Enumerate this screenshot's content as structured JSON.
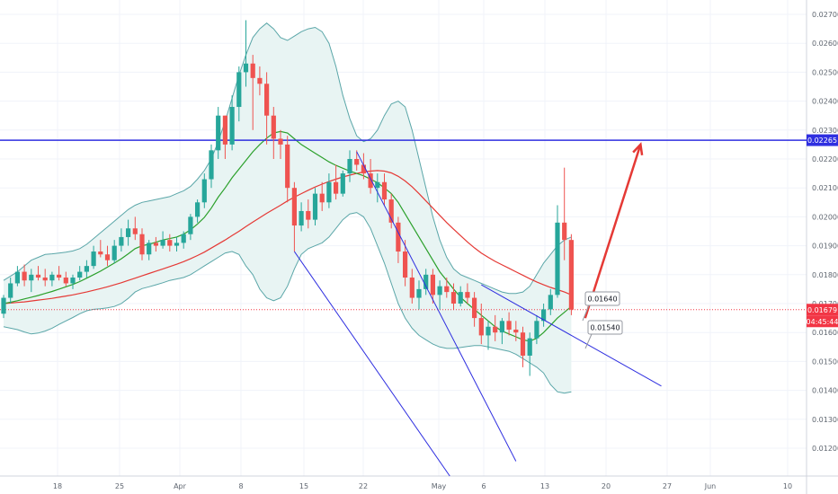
{
  "chart_data": {
    "type": "candlestick",
    "price_axis": {
      "ticks": [
        "0.02700",
        "0.02600",
        "0.02500",
        "0.02400",
        "0.02300",
        "0.02200",
        "0.02100",
        "0.02000",
        "0.01900",
        "0.01800",
        "0.01700",
        "0.01600",
        "0.01500",
        "0.01400",
        "0.01300",
        "0.01200"
      ],
      "range": [
        0.0115,
        0.0272
      ]
    },
    "time_axis": {
      "labels": [
        "18",
        "25",
        "Apr",
        "8",
        "15",
        "22",
        "May",
        "6",
        "13",
        "20",
        "27",
        "Jun",
        "10"
      ]
    },
    "price_tags": [
      {
        "text": "0.02265",
        "color": "#2f2fe0"
      },
      {
        "text": "0.01679",
        "color": "#f23645"
      },
      {
        "text": "04:45:44",
        "color": "#f23645"
      }
    ],
    "annotations": [
      {
        "text": "0.01640"
      },
      {
        "text": "0.01540"
      }
    ],
    "horizontal_line": {
      "price": 0.02265,
      "color": "#2f2fe0"
    },
    "last_price_line": {
      "price": 0.01679,
      "color": "#f23645"
    },
    "colors": {
      "up": "#26a69a",
      "down": "#ef5350",
      "bb_fill": "#e8f4f3",
      "bb_line": "#5aa6a8",
      "ma_fast": "#2ba02b",
      "ma_slow": "#e53935",
      "trend": "#2f2fe0",
      "arrow": "#e53935"
    },
    "candles": [
      [
        0.01665,
        0.0173,
        0.0165,
        0.0172
      ],
      [
        0.0172,
        0.0179,
        0.017,
        0.0177
      ],
      [
        0.0177,
        0.0183,
        0.0176,
        0.0181
      ],
      [
        0.0181,
        0.01835,
        0.0176,
        0.0178
      ],
      [
        0.0178,
        0.0182,
        0.0174,
        0.018
      ],
      [
        0.018,
        0.0183,
        0.0178,
        0.0179
      ],
      [
        0.0179,
        0.0182,
        0.0176,
        0.0178
      ],
      [
        0.0178,
        0.0181,
        0.0176,
        0.018
      ],
      [
        0.018,
        0.0183,
        0.0178,
        0.0179
      ],
      [
        0.0179,
        0.0181,
        0.0176,
        0.0177
      ],
      [
        0.0177,
        0.018,
        0.0175,
        0.0179
      ],
      [
        0.0179,
        0.0183,
        0.0178,
        0.0181
      ],
      [
        0.0181,
        0.0185,
        0.0179,
        0.0183
      ],
      [
        0.0183,
        0.019,
        0.0182,
        0.0188
      ],
      [
        0.0188,
        0.0192,
        0.0186,
        0.0187
      ],
      [
        0.0187,
        0.019,
        0.0183,
        0.0185
      ],
      [
        0.0185,
        0.0192,
        0.0184,
        0.019
      ],
      [
        0.019,
        0.0196,
        0.0188,
        0.0193
      ],
      [
        0.0193,
        0.0199,
        0.019,
        0.0196
      ],
      [
        0.0196,
        0.02,
        0.0192,
        0.0194
      ],
      [
        0.0194,
        0.0196,
        0.0185,
        0.0187
      ],
      [
        0.0187,
        0.0192,
        0.0185,
        0.0191
      ],
      [
        0.0191,
        0.0193,
        0.0188,
        0.019
      ],
      [
        0.019,
        0.0195,
        0.0189,
        0.0192
      ],
      [
        0.0192,
        0.0194,
        0.0188,
        0.019
      ],
      [
        0.019,
        0.0193,
        0.0188,
        0.0191
      ],
      [
        0.0191,
        0.0195,
        0.0189,
        0.0194
      ],
      [
        0.0194,
        0.0201,
        0.0192,
        0.02
      ],
      [
        0.02,
        0.0206,
        0.0198,
        0.0205
      ],
      [
        0.0205,
        0.0215,
        0.0203,
        0.0213
      ],
      [
        0.0213,
        0.0225,
        0.021,
        0.0223
      ],
      [
        0.0223,
        0.0238,
        0.022,
        0.0235
      ],
      [
        0.0235,
        0.0235,
        0.022,
        0.0225
      ],
      [
        0.0225,
        0.0242,
        0.0223,
        0.0238
      ],
      [
        0.0238,
        0.0252,
        0.0233,
        0.025
      ],
      [
        0.025,
        0.0268,
        0.0245,
        0.0253
      ],
      [
        0.0253,
        0.0256,
        0.023,
        0.0248
      ],
      [
        0.0248,
        0.0252,
        0.0242,
        0.0246
      ],
      [
        0.0246,
        0.025,
        0.0225,
        0.0235
      ],
      [
        0.0235,
        0.0238,
        0.022,
        0.0227
      ],
      [
        0.0227,
        0.023,
        0.022,
        0.0225
      ],
      [
        0.0225,
        0.0228,
        0.0205,
        0.021
      ],
      [
        0.021,
        0.0212,
        0.0188,
        0.0197
      ],
      [
        0.0197,
        0.0205,
        0.0195,
        0.0202
      ],
      [
        0.0202,
        0.0206,
        0.0196,
        0.0199
      ],
      [
        0.0199,
        0.021,
        0.0197,
        0.0208
      ],
      [
        0.0208,
        0.0212,
        0.0202,
        0.0205
      ],
      [
        0.0205,
        0.0215,
        0.0203,
        0.0212
      ],
      [
        0.0212,
        0.0218,
        0.0206,
        0.0208
      ],
      [
        0.0208,
        0.0216,
        0.0207,
        0.0215
      ],
      [
        0.0215,
        0.0223,
        0.0212,
        0.022
      ],
      [
        0.022,
        0.0223,
        0.0216,
        0.0218
      ],
      [
        0.0218,
        0.0222,
        0.0213,
        0.0215
      ],
      [
        0.0215,
        0.022,
        0.0208,
        0.021
      ],
      [
        0.021,
        0.0215,
        0.0205,
        0.0212
      ],
      [
        0.0212,
        0.0215,
        0.0204,
        0.0206
      ],
      [
        0.0206,
        0.0208,
        0.0196,
        0.0198
      ],
      [
        0.0198,
        0.02,
        0.0184,
        0.0188
      ],
      [
        0.0188,
        0.0192,
        0.0176,
        0.0179
      ],
      [
        0.0179,
        0.0182,
        0.017,
        0.0172
      ],
      [
        0.0172,
        0.0178,
        0.0168,
        0.0175
      ],
      [
        0.0175,
        0.0182,
        0.0173,
        0.018
      ],
      [
        0.018,
        0.0182,
        0.017,
        0.0173
      ],
      [
        0.0173,
        0.0178,
        0.0168,
        0.0176
      ],
      [
        0.0176,
        0.0179,
        0.0172,
        0.0174
      ],
      [
        0.0174,
        0.0177,
        0.0168,
        0.017
      ],
      [
        0.017,
        0.0176,
        0.0169,
        0.0174
      ],
      [
        0.0174,
        0.0177,
        0.017,
        0.0172
      ],
      [
        0.0172,
        0.0174,
        0.0162,
        0.0165
      ],
      [
        0.0165,
        0.017,
        0.0156,
        0.0159
      ],
      [
        0.0159,
        0.0164,
        0.0154,
        0.0162
      ],
      [
        0.0162,
        0.0166,
        0.0157,
        0.016
      ],
      [
        0.016,
        0.0165,
        0.0156,
        0.0164
      ],
      [
        0.0164,
        0.0167,
        0.0159,
        0.0161
      ],
      [
        0.0161,
        0.0164,
        0.0157,
        0.016
      ],
      [
        0.016,
        0.0162,
        0.0148,
        0.0152
      ],
      [
        0.0152,
        0.016,
        0.0145,
        0.0158
      ],
      [
        0.0158,
        0.0166,
        0.0156,
        0.0164
      ],
      [
        0.0164,
        0.017,
        0.0162,
        0.0168
      ],
      [
        0.0168,
        0.0175,
        0.0166,
        0.0173
      ],
      [
        0.0173,
        0.0204,
        0.0172,
        0.0198
      ],
      [
        0.0198,
        0.0217,
        0.0185,
        0.0192
      ],
      [
        0.0192,
        0.0194,
        0.0166,
        0.01679
      ]
    ],
    "series": [
      {
        "name": "",
        "type": "ma_fast",
        "values": [
          0.017,
          0.01705,
          0.0171,
          0.01716,
          0.01722,
          0.01728,
          0.01735,
          0.01742,
          0.0175,
          0.01758,
          0.01766,
          0.01776,
          0.01788,
          0.018,
          0.01812,
          0.01826,
          0.0184,
          0.01855,
          0.01872,
          0.0189,
          0.019,
          0.01905,
          0.01912,
          0.0192,
          0.01925,
          0.0193,
          0.0194,
          0.01955,
          0.01975,
          0.01998,
          0.0203,
          0.02068,
          0.021,
          0.02135,
          0.02165,
          0.02195,
          0.02225,
          0.0225,
          0.02272,
          0.0229,
          0.02295,
          0.0229,
          0.0227,
          0.0225,
          0.02235,
          0.0222,
          0.02205,
          0.0219,
          0.02178,
          0.02168,
          0.02158,
          0.0215,
          0.02142,
          0.0213,
          0.02118,
          0.021,
          0.0208,
          0.0205,
          0.0201,
          0.0197,
          0.0193,
          0.0189,
          0.0185,
          0.0181,
          0.0178,
          0.0175,
          0.01722,
          0.017,
          0.0168,
          0.0166,
          0.0164,
          0.0162,
          0.01605,
          0.01595,
          0.01585,
          0.01575,
          0.0157,
          0.0158,
          0.016,
          0.01625,
          0.0165,
          0.0167,
          0.0169
        ]
      },
      {
        "name": "",
        "type": "ma_slow",
        "values": [
          0.017,
          0.01702,
          0.01704,
          0.01706,
          0.01709,
          0.01712,
          0.01715,
          0.01718,
          0.01722,
          0.01726,
          0.0173,
          0.01735,
          0.0174,
          0.01746,
          0.01752,
          0.01758,
          0.01765,
          0.01772,
          0.0178,
          0.01788,
          0.01796,
          0.01804,
          0.01812,
          0.0182,
          0.01828,
          0.01836,
          0.01845,
          0.01855,
          0.01866,
          0.01878,
          0.01892,
          0.01906,
          0.0192,
          0.01935,
          0.0195,
          0.01966,
          0.01982,
          0.01997,
          0.02012,
          0.02026,
          0.0204,
          0.02055,
          0.02068,
          0.0208,
          0.02092,
          0.02103,
          0.02113,
          0.02122,
          0.0213,
          0.02138,
          0.02144,
          0.0215,
          0.02155,
          0.02158,
          0.0216,
          0.02158,
          0.02152,
          0.0214,
          0.02124,
          0.02104,
          0.0208,
          0.02055,
          0.0203,
          0.02005,
          0.0198,
          0.01957,
          0.01935,
          0.01913,
          0.01893,
          0.01875,
          0.0186,
          0.01846,
          0.01834,
          0.01822,
          0.0181,
          0.01798,
          0.01786,
          0.01775,
          0.01765,
          0.01756,
          0.01748,
          0.0174,
          0.0173
        ]
      },
      {
        "name": "",
        "type": "bb_upper",
        "values": [
          0.0178,
          0.01795,
          0.0181,
          0.0183,
          0.0185,
          0.0186,
          0.0187,
          0.01872,
          0.01875,
          0.01878,
          0.01882,
          0.0189,
          0.01905,
          0.01925,
          0.01945,
          0.01965,
          0.01985,
          0.02005,
          0.02025,
          0.0204,
          0.0205,
          0.02055,
          0.0206,
          0.02065,
          0.0207,
          0.0208,
          0.0209,
          0.02105,
          0.0213,
          0.0216,
          0.022,
          0.0226,
          0.0233,
          0.0241,
          0.0249,
          0.0256,
          0.0262,
          0.0265,
          0.0267,
          0.0265,
          0.0262,
          0.0261,
          0.02625,
          0.0264,
          0.0265,
          0.02655,
          0.0264,
          0.026,
          0.0252,
          0.0242,
          0.0234,
          0.0228,
          0.0226,
          0.0227,
          0.023,
          0.0235,
          0.0239,
          0.024,
          0.0238,
          0.023,
          0.022,
          0.021,
          0.02,
          0.0192,
          0.0186,
          0.0182,
          0.018,
          0.0179,
          0.0178,
          0.0177,
          0.0176,
          0.0175,
          0.0174,
          0.01735,
          0.01735,
          0.0174,
          0.0176,
          0.018,
          0.0184,
          0.0187,
          0.019,
          0.0192,
          0.0193
        ]
      },
      {
        "name": "",
        "type": "bb_lower",
        "values": [
          0.0162,
          0.01615,
          0.0161,
          0.01602,
          0.01595,
          0.01598,
          0.01605,
          0.01615,
          0.01628,
          0.0164,
          0.01652,
          0.01665,
          0.01675,
          0.0168,
          0.01682,
          0.01685,
          0.0169,
          0.017,
          0.01718,
          0.0174,
          0.01752,
          0.01758,
          0.01765,
          0.01772,
          0.0178,
          0.01785,
          0.0179,
          0.018,
          0.01815,
          0.0183,
          0.01845,
          0.0186,
          0.01875,
          0.0188,
          0.0187,
          0.0183,
          0.018,
          0.0175,
          0.0172,
          0.0171,
          0.0172,
          0.0176,
          0.0182,
          0.0187,
          0.0189,
          0.019,
          0.0191,
          0.0193,
          0.0196,
          0.0199,
          0.0201,
          0.02015,
          0.02,
          0.0196,
          0.019,
          0.0184,
          0.0177,
          0.017,
          0.0165,
          0.01615,
          0.0159,
          0.01575,
          0.0156,
          0.0155,
          0.01545,
          0.01545,
          0.01548,
          0.01552,
          0.01555,
          0.01555,
          0.0155,
          0.01545,
          0.0154,
          0.01535,
          0.01525,
          0.0151,
          0.01495,
          0.0148,
          0.0146,
          0.0142,
          0.01395,
          0.0139,
          0.01395
        ]
      }
    ],
    "trendlines": [
      {
        "p1": [
          42,
          0.0188
        ],
        "p2": [
          66,
          0.0105
        ]
      },
      {
        "p1": [
          51,
          0.02225
        ],
        "p2": [
          74,
          0.01155
        ]
      },
      {
        "p1": [
          69,
          0.01765
        ],
        "p2": [
          95,
          0.01415
        ]
      }
    ],
    "arrow": {
      "p1": [
        84,
        0.0165
      ],
      "p2": [
        92,
        0.0225
      ]
    }
  }
}
